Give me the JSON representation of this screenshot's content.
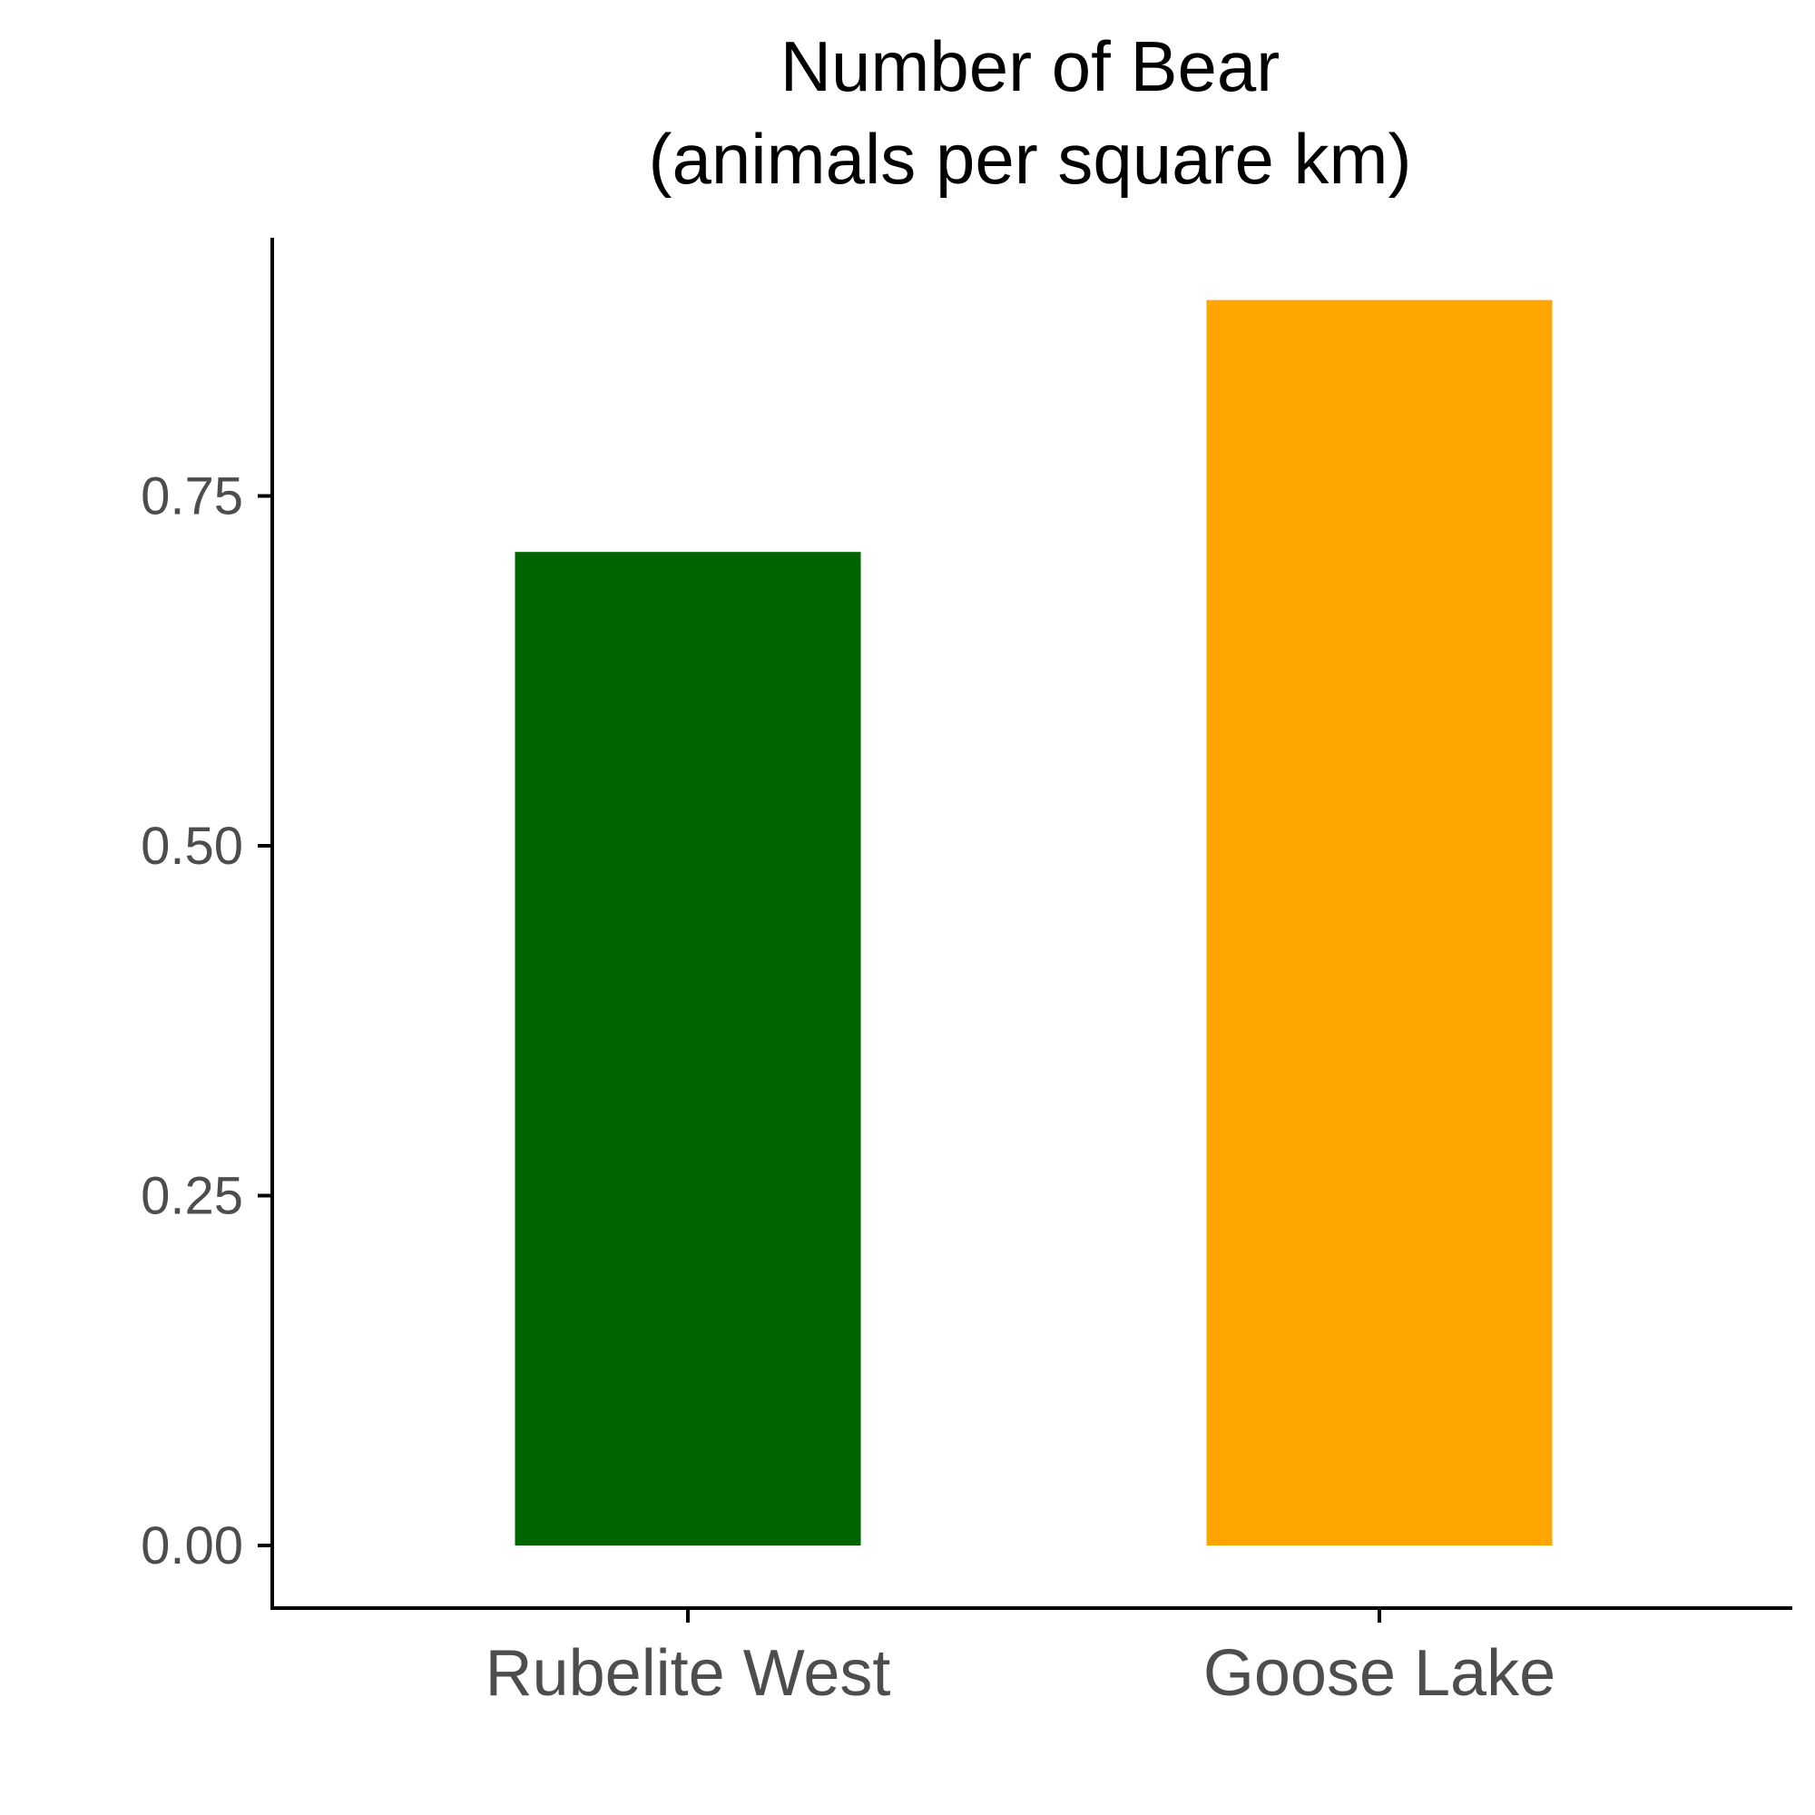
{
  "chart_data": {
    "type": "bar",
    "title": [
      "Number of Bear",
      "(animals per square km)"
    ],
    "xlabel": "",
    "ylabel": "",
    "categories": [
      "Rubelite West",
      "Goose Lake"
    ],
    "values": [
      0.71,
      0.89
    ],
    "colors": [
      "#006400",
      "#FFA500"
    ],
    "yticks": [
      "0.00",
      "0.25",
      "0.50",
      "0.75"
    ],
    "ytick_values": [
      0,
      0.25,
      0.5,
      0.75
    ],
    "ylim": [
      -0.045,
      0.935
    ],
    "grid": false,
    "legend": "none"
  }
}
